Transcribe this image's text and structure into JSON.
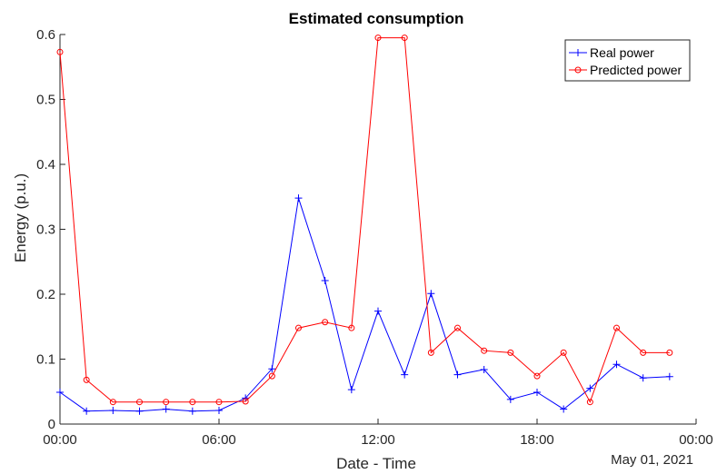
{
  "chart_data": {
    "type": "line",
    "title": "Estimated consumption",
    "xlabel": "Date - Time",
    "ylabel": "Energy (p.u.)",
    "date_label": "May 01, 2021",
    "x_tick_labels": [
      "00:00",
      "06:00",
      "12:00",
      "18:00",
      "00:00"
    ],
    "x_ticks_hours": [
      0,
      6,
      12,
      18,
      24
    ],
    "xlim_hours": [
      0,
      24
    ],
    "y_ticks": [
      0,
      0.1,
      0.2,
      0.3,
      0.4,
      0.5,
      0.6
    ],
    "y_tick_labels": [
      "0",
      "0.1",
      "0.2",
      "0.3",
      "0.4",
      "0.5",
      "0.6"
    ],
    "ylim": [
      0,
      0.6
    ],
    "grid": false,
    "legend_position": "top-right",
    "x_hours": [
      0,
      1,
      2,
      3,
      4,
      5,
      6,
      7,
      8,
      9,
      10,
      11,
      12,
      13,
      14,
      15,
      16,
      17,
      18,
      19,
      20,
      21,
      22,
      23
    ],
    "series": [
      {
        "name": "Real power",
        "color": "#0000ff",
        "marker": "plus",
        "values": [
          0.049,
          0.02,
          0.021,
          0.02,
          0.023,
          0.02,
          0.021,
          0.04,
          0.085,
          0.348,
          0.221,
          0.053,
          0.174,
          0.076,
          0.201,
          0.076,
          0.084,
          0.038,
          0.049,
          0.023,
          0.055,
          0.092,
          0.071,
          0.073
        ]
      },
      {
        "name": "Predicted power",
        "color": "#ff0000",
        "marker": "circle",
        "values": [
          0.573,
          0.068,
          0.034,
          0.034,
          0.034,
          0.034,
          0.034,
          0.035,
          0.074,
          0.148,
          0.157,
          0.148,
          0.595,
          0.595,
          0.11,
          0.148,
          0.113,
          0.11,
          0.074,
          0.11,
          0.034,
          0.148,
          0.11,
          0.11
        ]
      }
    ]
  }
}
